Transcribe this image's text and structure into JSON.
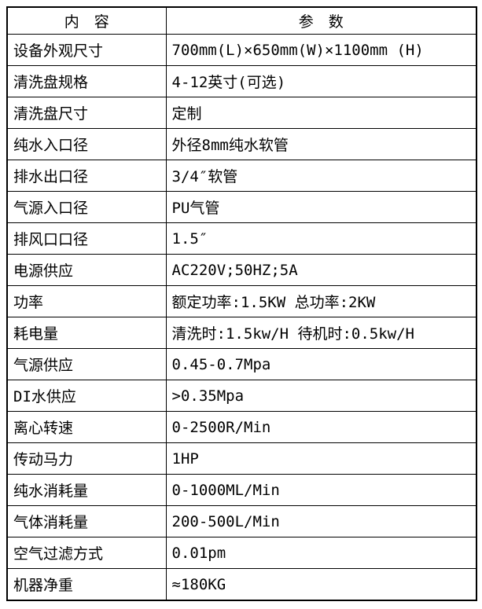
{
  "table": {
    "header": {
      "col1": "内　容",
      "col2": "参　数"
    },
    "rows": [
      {
        "label": "设备外观尺寸",
        "value": "700mm(L)×650mm(W)×1100mm (H)"
      },
      {
        "label": "清洗盘规格",
        "value": "4-12英寸(可选)"
      },
      {
        "label": "清洗盘尺寸",
        "value": "定制"
      },
      {
        "label": "纯水入口径",
        "value": "外径8mm纯水软管"
      },
      {
        "label": "排水出口径",
        "value": "3/4″软管"
      },
      {
        "label": "气源入口径",
        "value": "PU气管"
      },
      {
        "label": "排风口口径",
        "value": "1.5″"
      },
      {
        "label": "电源供应",
        "value": "AC220V;50HZ;5A"
      },
      {
        "label": "功率",
        "value": "额定功率:1.5KW 总功率:2KW"
      },
      {
        "label": "耗电量",
        "value": "清洗时:1.5kw/H 待机时:0.5kw/H"
      },
      {
        "label": "气源供应",
        "value": "0.45-0.7Mpa"
      },
      {
        "label": "DI水供应",
        "value": ">0.35Mpa"
      },
      {
        "label": "离心转速",
        "value": "0-2500R/Min"
      },
      {
        "label": "传动马力",
        "value": "1HP"
      },
      {
        "label": "纯水消耗量",
        "value": "0-1000ML/Min"
      },
      {
        "label": "气体消耗量",
        "value": "200-500L/Min"
      },
      {
        "label": "空气过滤方式",
        "value": "0.01pm"
      },
      {
        "label": "机器净重",
        "value": "≈180KG"
      }
    ],
    "colors": {
      "border": "#000000",
      "text": "#000000",
      "background": "#ffffff"
    }
  }
}
